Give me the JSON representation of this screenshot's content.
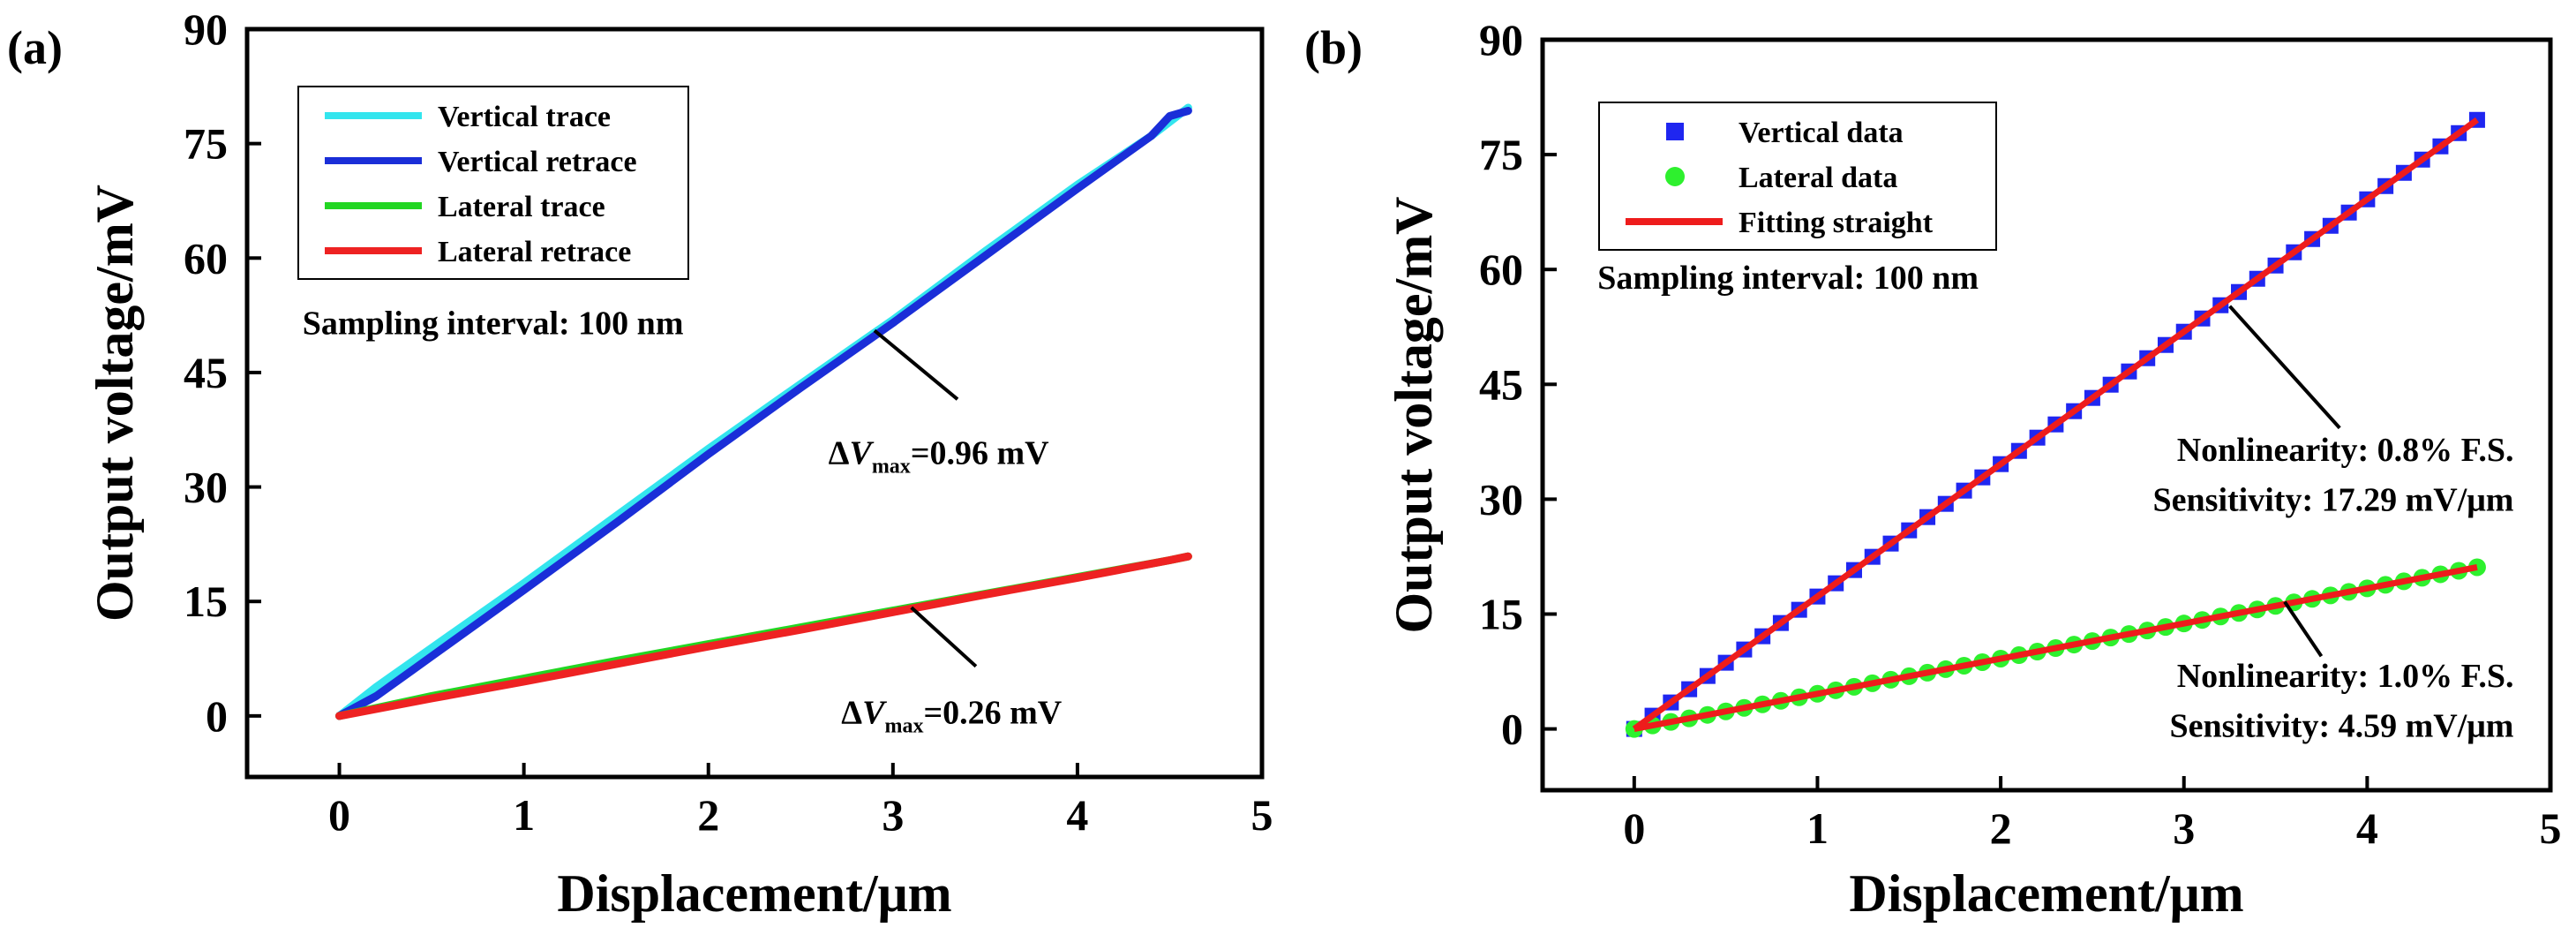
{
  "chart_data": [
    {
      "panel": "(a)",
      "type": "line",
      "xlabel": "Displacement/μm",
      "ylabel": "Output voltage/mV",
      "xlim": [
        -0.5,
        5
      ],
      "ylim": [
        -8,
        90
      ],
      "xticks": [
        0,
        1,
        2,
        3,
        4,
        5
      ],
      "yticks": [
        0,
        15,
        30,
        45,
        60,
        75,
        90
      ],
      "grid": false,
      "legend_position": "top-left",
      "series": [
        {
          "name": "Vertical trace",
          "color": "#33e5ee",
          "x": [
            0,
            0.2,
            0.5,
            1.0,
            1.5,
            2.0,
            2.5,
            3.0,
            3.5,
            4.0,
            4.4,
            4.6
          ],
          "y": [
            0,
            3.8,
            8.9,
            17.4,
            26.2,
            35.0,
            43.5,
            51.9,
            60.9,
            69.6,
            76.0,
            79.7
          ]
        },
        {
          "name": "Vertical retrace",
          "color": "#1a2ed8",
          "x": [
            0,
            0.2,
            0.5,
            1.0,
            1.5,
            2.0,
            2.5,
            3.0,
            3.5,
            4.0,
            4.4,
            4.5,
            4.6
          ],
          "y": [
            0,
            2.6,
            7.8,
            16.5,
            25.3,
            34.3,
            43.0,
            51.5,
            60.3,
            69.1,
            76.0,
            78.6,
            79.3
          ]
        },
        {
          "name": "Lateral trace",
          "color": "#22d622",
          "x": [
            0,
            0.5,
            1.0,
            1.5,
            2.0,
            2.5,
            3.0,
            3.5,
            4.0,
            4.5,
            4.6
          ],
          "y": [
            0,
            2.6,
            4.9,
            7.2,
            9.4,
            11.6,
            13.8,
            16.0,
            18.2,
            20.4,
            20.9
          ]
        },
        {
          "name": "Lateral retrace",
          "color": "#ee2222",
          "x": [
            0,
            0.5,
            1.0,
            1.5,
            2.0,
            2.5,
            3.0,
            3.5,
            4.0,
            4.5,
            4.6
          ],
          "y": [
            0,
            2.3,
            4.5,
            6.8,
            9.1,
            11.3,
            13.6,
            15.9,
            18.1,
            20.4,
            20.9
          ]
        }
      ],
      "annotations": [
        {
          "text": "Sampling interval: 100 nm",
          "x": -0.2,
          "y": 50
        },
        {
          "prefix": "Δ",
          "var": "V",
          "sub": "max",
          "suffix": "=0.96 mV",
          "x": 2.65,
          "y": 33,
          "arrow_from": [
            3.35,
            41.5
          ],
          "arrow_to": [
            2.9,
            50.5
          ]
        },
        {
          "prefix": "Δ",
          "var": "V",
          "sub": "max",
          "suffix": "=0.26 mV",
          "x": 2.72,
          "y": -1,
          "arrow_from": [
            3.45,
            6.5
          ],
          "arrow_to": [
            3.1,
            14.2
          ]
        }
      ]
    },
    {
      "panel": "(b)",
      "type": "scatter",
      "xlabel": "Displacement/μm",
      "ylabel": "Output voltage/mV",
      "xlim": [
        -0.5,
        5
      ],
      "ylim": [
        -8,
        90
      ],
      "xticks": [
        0,
        1,
        2,
        3,
        4,
        5
      ],
      "yticks": [
        0,
        15,
        30,
        45,
        60,
        75,
        90
      ],
      "grid": false,
      "legend_position": "top-left",
      "series": [
        {
          "name": "Vertical data",
          "marker": "square",
          "color": "#1f26f0",
          "x_start": 0,
          "x_step": 0.1,
          "count": 47,
          "slope": 17.29,
          "intercept": 0
        },
        {
          "name": "Lateral data",
          "marker": "circle",
          "color": "#2ef02e",
          "x_start": 0,
          "x_step": 0.1,
          "count": 47,
          "slope": 4.59,
          "intercept": 0
        },
        {
          "name": "Fitting straight",
          "marker": "line",
          "color": "#ee1c1c",
          "fits": [
            {
              "slope": 17.29,
              "x": [
                0,
                4.6
              ]
            },
            {
              "slope": 4.59,
              "x": [
                0,
                4.6
              ]
            }
          ]
        }
      ],
      "annotations": [
        {
          "text": "Sampling interval: 100 nm",
          "x": -0.2,
          "y": 57.5
        },
        {
          "lines": [
            "Nonlinearity: 0.8% F.S.",
            "Sensitivity: 17.29 mV/μm"
          ],
          "align": "right",
          "x": 4.8,
          "y1": 35,
          "y2": 28.5,
          "arrow_from": [
            3.85,
            39.3
          ],
          "arrow_to": [
            3.25,
            55.2
          ]
        },
        {
          "lines": [
            "Nonlinearity: 1.0% F.S.",
            "Sensitivity: 4.59 mV/μm"
          ],
          "align": "right",
          "x": 4.8,
          "y1": 5.5,
          "y2": -1,
          "arrow_from": [
            3.75,
            9.5
          ],
          "arrow_to": [
            3.55,
            16.6
          ]
        }
      ]
    }
  ]
}
